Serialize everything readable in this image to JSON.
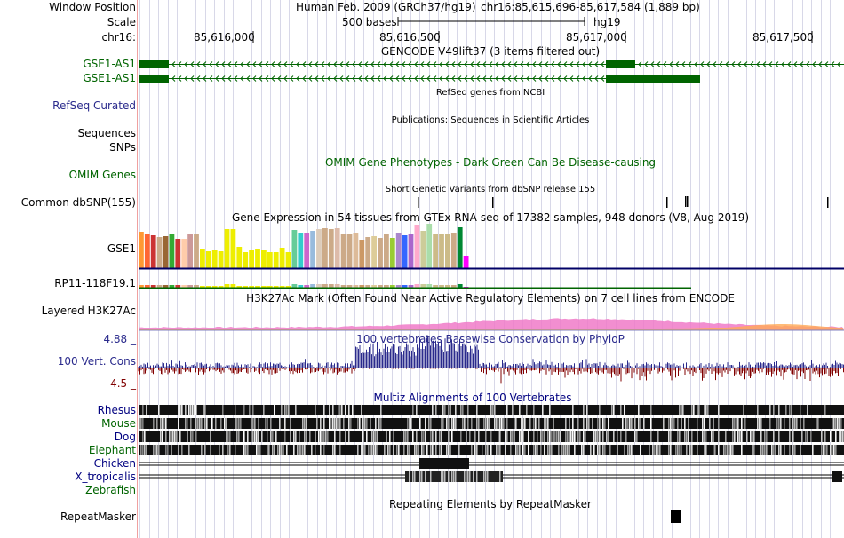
{
  "header": {
    "window_position_label": "Window Position",
    "scale_label": "Scale",
    "chrom_label": "chr16:",
    "assembly": "Human Feb. 2009 (GRCh37/hg19)",
    "position": "chr16:85,615,696-85,617,584 (1,889 bp)",
    "scale_value": "500 bases",
    "db": "hg19",
    "ticks": [
      "85,616,000",
      "85,616,500",
      "85,617,000",
      "85,617,500"
    ]
  },
  "tracks": {
    "gencode": {
      "title": "GENCODE V49lift37 (3 items filtered out)",
      "items": [
        "GSE1-AS1",
        "GSE1-AS1"
      ],
      "color": "#006400"
    },
    "refseq": {
      "title": "RefSeq genes from NCBI",
      "label": "RefSeq Curated",
      "color": "#0c0c78"
    },
    "publications": {
      "title": "Publications: Sequences in Scientific Articles",
      "labels": [
        "Sequences",
        "SNPs"
      ]
    },
    "omim": {
      "title": "OMIM Gene Phenotypes - Dark Green Can Be Disease-causing",
      "label": "OMIM Genes",
      "color": "#006400"
    },
    "dbsnp": {
      "title": "Short Genetic Variants from dbSNP release 155",
      "label": "Common dbSNP(155)"
    },
    "gtex": {
      "title": "Gene Expression in 54 tissues from GTEx RNA-seq of 17382 samples, 948 donors (V8, Aug 2019)",
      "genes": [
        "GSE1",
        "RP11-118F19.1"
      ],
      "colors": [
        "#ff9933",
        "#ff6633",
        "#cc3333",
        "#ccaa88",
        "#996633",
        "#33aa33",
        "#cc3333",
        "#ffccaa",
        "#cc9999",
        "#ccaa88",
        "#eeee00",
        "#eeee00",
        "#eeee00",
        "#eeee00",
        "#eeee00",
        "#eeee00",
        "#eeee00",
        "#eeee00",
        "#eeee00",
        "#eeee00",
        "#eeee00",
        "#eeee00",
        "#eeee00",
        "#eeee00",
        "#eeee00",
        "#66cc99",
        "#33cccc",
        "#cc66cc",
        "#99bbdd",
        "#ddccbb",
        "#ccaa88",
        "#ccaa88",
        "#ddbbaa",
        "#ccaa88",
        "#ccaa88",
        "#ddbb99",
        "#cc9966",
        "#ccaa88",
        "#ddcc99",
        "#ccaa88",
        "#ccaa88",
        "#99cc33",
        "#aa88cc",
        "#3366ff",
        "#aa66cc",
        "#ffaacc",
        "#cccc99",
        "#aaddaa",
        "#ccbb88",
        "#ccbb88",
        "#ccbb88",
        "#ccaa88",
        "#008833",
        "#ff00ff"
      ],
      "gse1_values": [
        41,
        38,
        37,
        35,
        36,
        38,
        33,
        33,
        38,
        38,
        21,
        19,
        20,
        19,
        44,
        44,
        24,
        18,
        20,
        21,
        20,
        18,
        18,
        23,
        18,
        43,
        40,
        40,
        42,
        44,
        45,
        44,
        45,
        38,
        38,
        40,
        32,
        35,
        36,
        34,
        38,
        34,
        40,
        37,
        38,
        49,
        42,
        50,
        38,
        38,
        38,
        40,
        46,
        14
      ]
    },
    "h3k27ac": {
      "title": "H3K27Ac Mark (Often Found Near Active Regulatory Elements) on 7 cell lines from ENCODE",
      "label": "Layered H3K27Ac"
    },
    "phylop": {
      "title": "100 vertebrates Basewise Conservation by PhyloP",
      "label": "100 Vert. Cons",
      "max": "4.88 _",
      "min": "-4.5 _",
      "color_pos": "#2a2a8c",
      "color_neg": "#800000"
    },
    "multiz": {
      "title": "Multiz Alignments of 100 Vertebrates",
      "species": [
        "Rhesus",
        "Mouse",
        "Dog",
        "Elephant",
        "Chicken",
        "X_tropicalis",
        "Zebrafish"
      ]
    },
    "repeatmasker": {
      "title": "Repeating Elements by RepeatMasker",
      "label": "RepeatMasker"
    }
  }
}
